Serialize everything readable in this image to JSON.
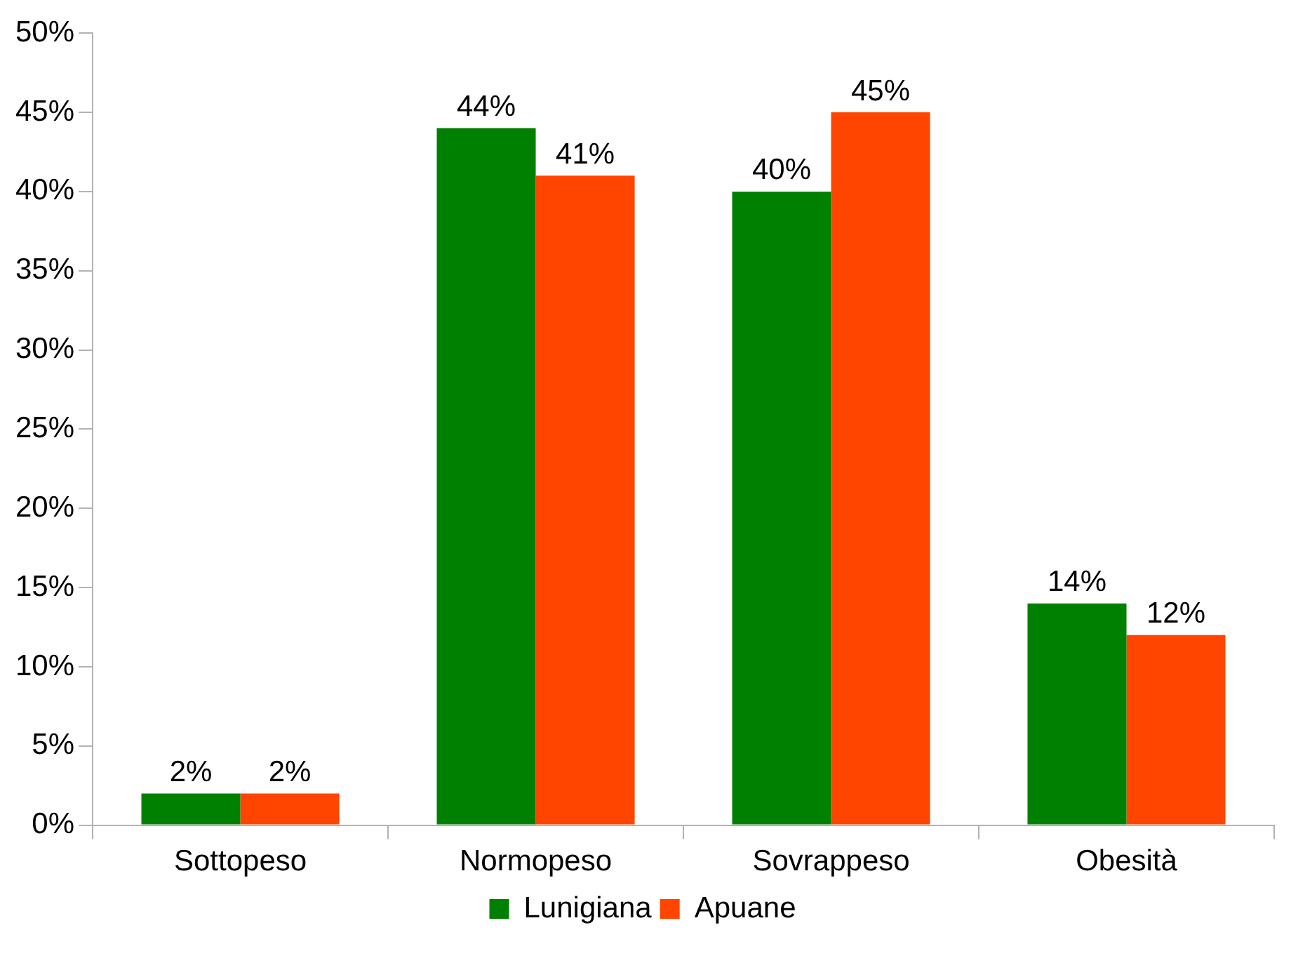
{
  "chart_data": {
    "type": "bar",
    "categories": [
      "Sottopeso",
      "Normopeso",
      "Sovrappeso",
      "Obesità"
    ],
    "series": [
      {
        "name": "Lunigiana",
        "color": "#008000",
        "values": [
          2,
          44,
          40,
          14
        ],
        "value_labels": [
          "2%",
          "44%",
          "40%",
          "14%"
        ]
      },
      {
        "name": "Apuane",
        "color": "#ff4500",
        "values": [
          2,
          41,
          45,
          12
        ],
        "value_labels": [
          "2%",
          "41%",
          "45%",
          "12%"
        ]
      }
    ],
    "ylim": [
      0,
      50
    ],
    "yticks": [
      {
        "value": 0,
        "label": "0%"
      },
      {
        "value": 5,
        "label": "5%"
      },
      {
        "value": 10,
        "label": "10%"
      },
      {
        "value": 15,
        "label": "15%"
      },
      {
        "value": 20,
        "label": "20%"
      },
      {
        "value": 25,
        "label": "25%"
      },
      {
        "value": 30,
        "label": "30%"
      },
      {
        "value": 35,
        "label": "35%"
      },
      {
        "value": 40,
        "label": "40%"
      },
      {
        "value": 45,
        "label": "45%"
      },
      {
        "value": 50,
        "label": "50%"
      }
    ],
    "grid": false,
    "legend": "bottom"
  }
}
